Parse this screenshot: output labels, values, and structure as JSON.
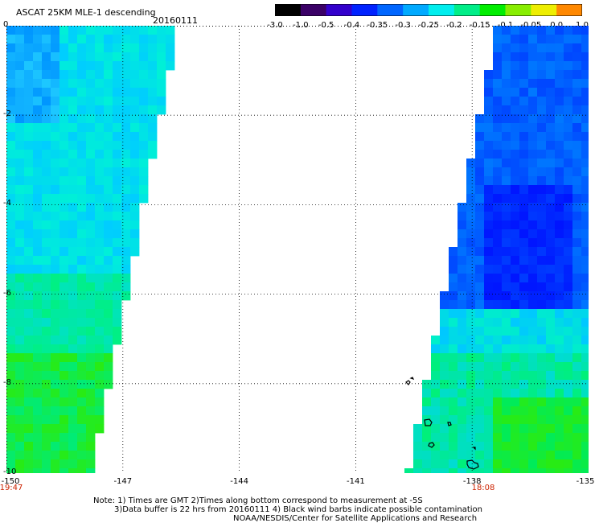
{
  "header": {
    "title": "ASCAT 25KM MLE-1 descending",
    "date": "20160111"
  },
  "colorbar": {
    "ticks": [
      "-3.0",
      "-1.0",
      "-0.5",
      "-0.4",
      "-0.35",
      "-0.3",
      "-0.25",
      "-0.2",
      "-0.15",
      "-0.1",
      "-0.05",
      "0.0",
      "1.0"
    ],
    "colors": [
      "#000000",
      "#3a0066",
      "#3300cc",
      "#0022ff",
      "#0066ff",
      "#00aaff",
      "#00eeee",
      "#00ee88",
      "#00ee00",
      "#88ee00",
      "#eeee00",
      "#ff8800",
      "#ff2200"
    ]
  },
  "axes": {
    "y_ticks": [
      "0",
      "-2",
      "-4",
      "-6",
      "-8",
      "-10"
    ],
    "x_ticks": [
      "-150",
      "-147",
      "-144",
      "-141",
      "-138",
      "-135"
    ],
    "times": {
      "left": "19:47",
      "right": "18:08"
    }
  },
  "notes": [
    "Note: 1) Times are GMT 2)Times along bottom correspond to measurement at -5S",
    "3)Data buffer is 22 hrs from 20160111 4) Black wind barbs indicate possible contamination",
    "NOAA/NESDIS/Center for Satellite Applications and Research"
  ]
}
